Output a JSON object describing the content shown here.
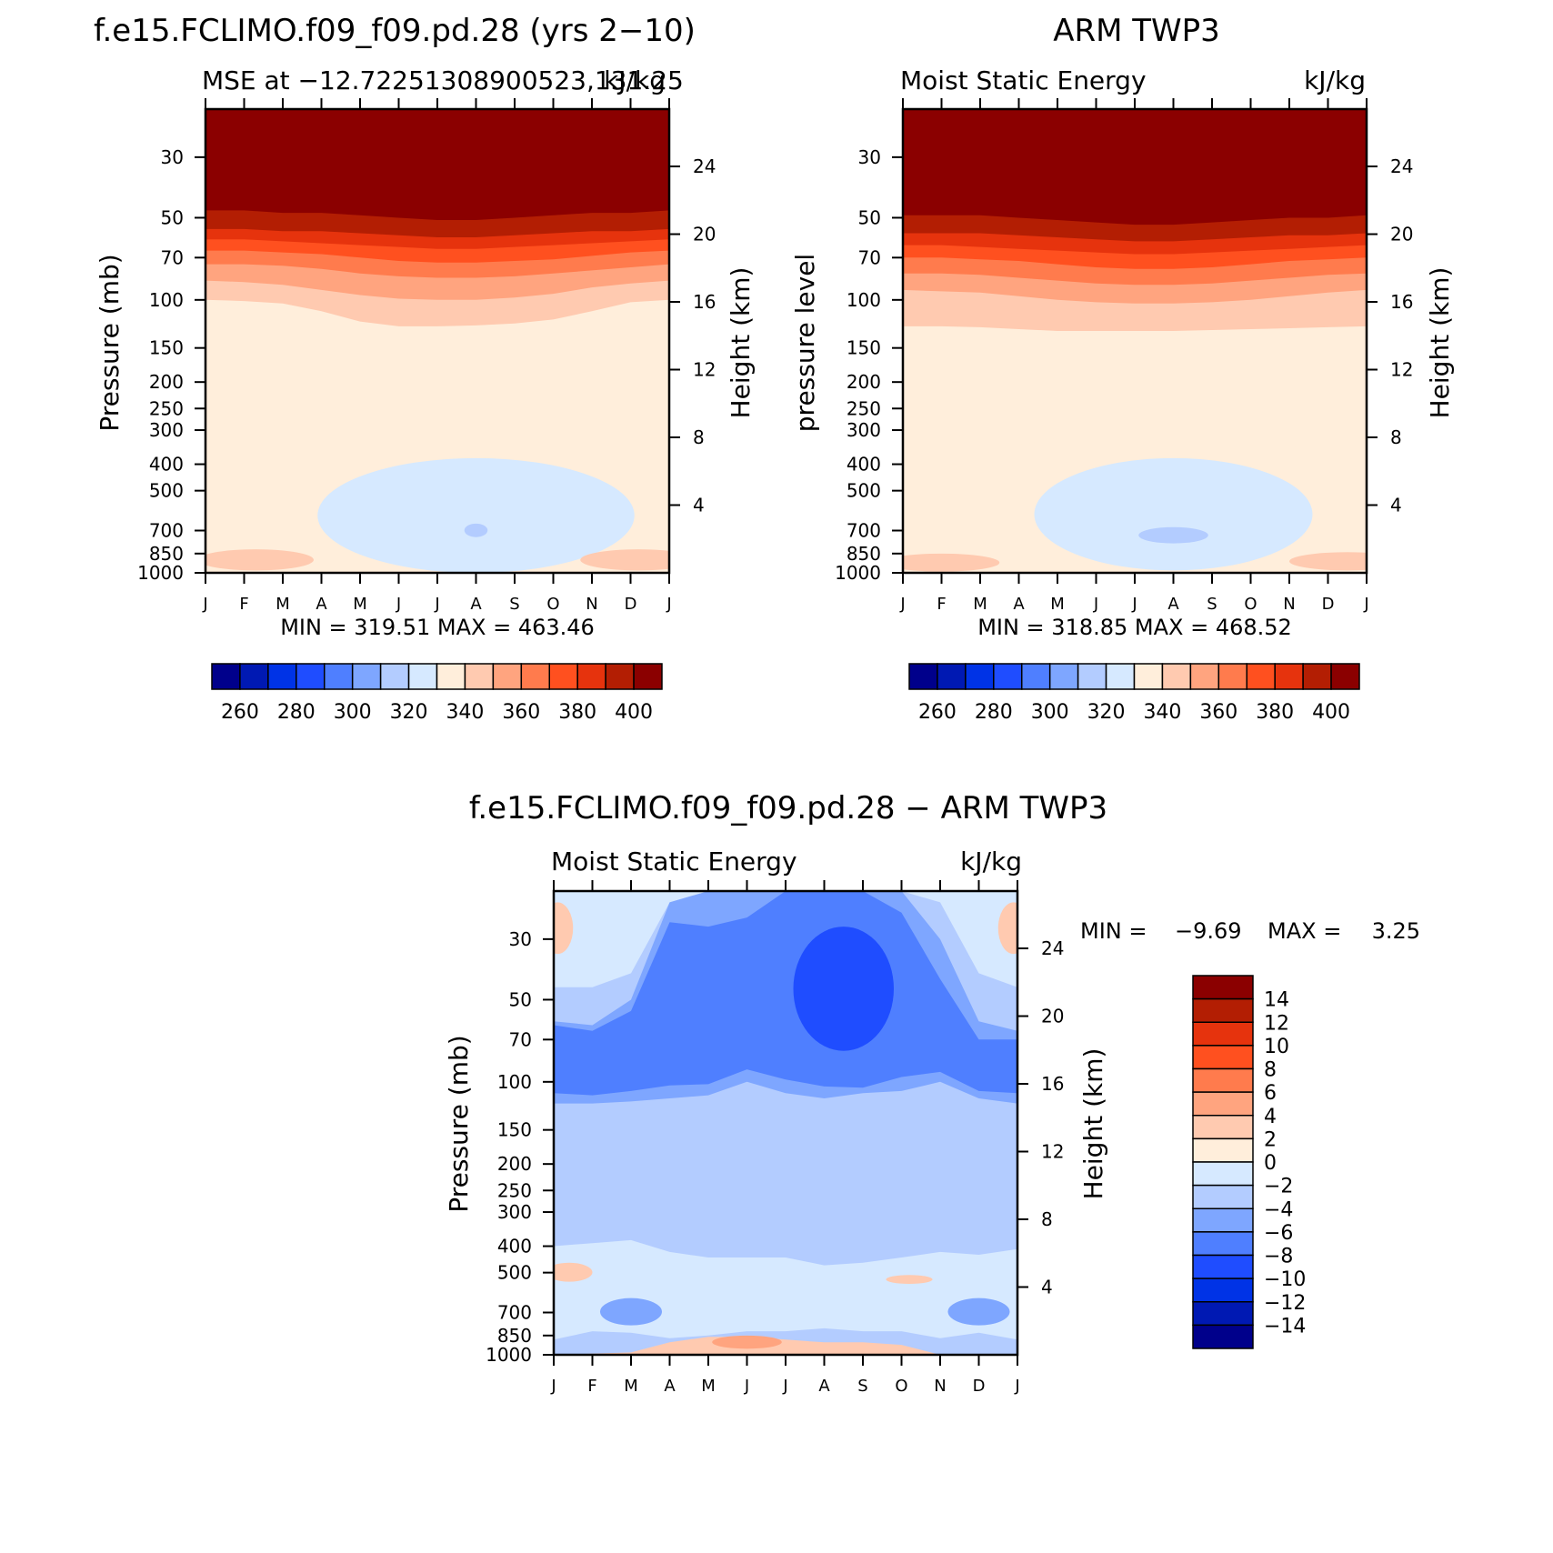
{
  "chart_data": [
    {
      "type": "heatmap",
      "id": "model",
      "title": "f.e15.FCLIMO.f09_f09.pd.28 (yrs 2−10)",
      "left_subtitle": "MSE at −12.72251308900523,131.25",
      "right_subtitle": "kJ/kg",
      "ylabel": "Pressure (mb)",
      "ylabel_right": "Height (km)",
      "xlabel": "",
      "months": [
        "J",
        "F",
        "M",
        "A",
        "M",
        "J",
        "J",
        "A",
        "S",
        "O",
        "N",
        "D",
        "J"
      ],
      "pressure_ticks": [
        30,
        50,
        70,
        100,
        150,
        200,
        250,
        300,
        400,
        500,
        700,
        850,
        1000
      ],
      "height_ticks": [
        4,
        8,
        12,
        16,
        20,
        24
      ],
      "ylim": [
        1000,
        20
      ],
      "stats": "MIN = 319.51 MAX = 463.46",
      "colorbar": {
        "orientation": "horizontal",
        "levels": [
          250,
          260,
          270,
          280,
          290,
          300,
          310,
          320,
          330,
          340,
          350,
          360,
          370,
          380,
          390,
          400
        ],
        "tick_labels": [
          "260",
          "280",
          "300",
          "320",
          "340",
          "360",
          "380",
          "400"
        ],
        "colors": [
          "#00008b",
          "#0019b3",
          "#0033e6",
          "#1f4dff",
          "#4f7fff",
          "#7ea6ff",
          "#b3ccff",
          "#d6e9ff",
          "#ffeedb",
          "#ffcab0",
          "#ffa47f",
          "#ff7b4d",
          "#ff501f",
          "#e6330d",
          "#b31e03",
          "#8b0000"
        ]
      },
      "fields": [
        {
          "level": 330,
          "months": [
            0,
            1,
            2,
            3,
            4,
            5,
            6,
            7,
            8,
            9,
            10,
            11,
            12
          ],
          "pressure": [
            280,
            285,
            290,
            260,
            230,
            215,
            210,
            210,
            220,
            240,
            270,
            290,
            285
          ]
        },
        {
          "level": 340,
          "months": [
            0,
            1,
            2,
            3,
            4,
            5,
            6,
            7,
            8,
            9,
            10,
            11,
            12
          ],
          "pressure": [
            100,
            101,
            103,
            110,
            120,
            125,
            125,
            124,
            122,
            118,
            110,
            102,
            100
          ]
        },
        {
          "level": 350,
          "months": [
            0,
            1,
            2,
            3,
            4,
            5,
            6,
            7,
            8,
            9,
            10,
            11,
            12
          ],
          "pressure": [
            85,
            86,
            88,
            92,
            96,
            99,
            100,
            100,
            98,
            95,
            90,
            87,
            85
          ]
        },
        {
          "level": 360,
          "months": [
            0,
            1,
            2,
            3,
            4,
            5,
            6,
            7,
            8,
            9,
            10,
            11,
            12
          ],
          "pressure": [
            74,
            74,
            75,
            77,
            80,
            82,
            83,
            83,
            82,
            80,
            78,
            76,
            74
          ]
        },
        {
          "level": 370,
          "months": [
            0,
            1,
            2,
            3,
            4,
            5,
            6,
            7,
            8,
            9,
            10,
            11,
            12
          ],
          "pressure": [
            66,
            66,
            67,
            68,
            70,
            72,
            73,
            73,
            72,
            71,
            69,
            67,
            66
          ]
        },
        {
          "level": 380,
          "months": [
            0,
            1,
            2,
            3,
            4,
            5,
            6,
            7,
            8,
            9,
            10,
            11,
            12
          ],
          "pressure": [
            60,
            60,
            61,
            62,
            63,
            64,
            65,
            65,
            64,
            63,
            62,
            61,
            60
          ]
        },
        {
          "level": 390,
          "months": [
            0,
            1,
            2,
            3,
            4,
            5,
            6,
            7,
            8,
            9,
            10,
            11,
            12
          ],
          "pressure": [
            55,
            55,
            56,
            56,
            57,
            58,
            59,
            59,
            58,
            57,
            56,
            56,
            55
          ]
        }
      ],
      "anomalies": [
        {
          "level": 320,
          "center": [
            7.0,
            700
          ],
          "extent": [
            4.1,
            320
          ]
        },
        {
          "level": 310,
          "center": [
            7.0,
            700
          ],
          "extent": [
            0.3,
            40
          ]
        },
        {
          "level": 340,
          "center": [
            1.3,
            900
          ],
          "extent": [
            1.5,
            80
          ]
        },
        {
          "level": 340,
          "center": [
            11.2,
            900
          ],
          "extent": [
            1.5,
            80
          ]
        }
      ]
    },
    {
      "type": "heatmap",
      "id": "obs",
      "title": "ARM TWP3",
      "left_subtitle": "Moist Static Energy",
      "right_subtitle": "kJ/kg",
      "ylabel": "pressure level",
      "ylabel_right": "Height (km)",
      "xlabel": "",
      "months": [
        "J",
        "F",
        "M",
        "A",
        "M",
        "J",
        "J",
        "A",
        "S",
        "O",
        "N",
        "D",
        "J"
      ],
      "pressure_ticks": [
        30,
        50,
        70,
        100,
        150,
        200,
        250,
        300,
        400,
        500,
        700,
        850,
        1000
      ],
      "height_ticks": [
        4,
        8,
        12,
        16,
        20,
        24
      ],
      "ylim": [
        1000,
        20
      ],
      "stats": "MIN = 318.85 MAX = 468.52",
      "colorbar": {
        "orientation": "horizontal",
        "levels": [
          250,
          260,
          270,
          280,
          290,
          300,
          310,
          320,
          330,
          340,
          350,
          360,
          370,
          380,
          390,
          400
        ],
        "tick_labels": [
          "260",
          "280",
          "300",
          "320",
          "340",
          "360",
          "380",
          "400"
        ],
        "colors": [
          "#00008b",
          "#0019b3",
          "#0033e6",
          "#1f4dff",
          "#4f7fff",
          "#7ea6ff",
          "#b3ccff",
          "#d6e9ff",
          "#ffeedb",
          "#ffcab0",
          "#ffa47f",
          "#ff7b4d",
          "#ff501f",
          "#e6330d",
          "#b31e03",
          "#8b0000"
        ]
      },
      "fields": [
        {
          "level": 330,
          "months": [
            0,
            1,
            2,
            3,
            4,
            5,
            6,
            7,
            8,
            9,
            10,
            11,
            12
          ],
          "pressure": [
            390,
            385,
            370,
            340,
            320,
            310,
            300,
            300,
            300,
            310,
            340,
            370,
            390
          ]
        },
        {
          "level": 340,
          "months": [
            0,
            1,
            2,
            3,
            4,
            5,
            6,
            7,
            8,
            9,
            10,
            11,
            12
          ],
          "pressure": [
            125,
            125,
            126,
            128,
            130,
            130,
            130,
            130,
            129,
            128,
            127,
            126,
            125
          ]
        },
        {
          "level": 350,
          "months": [
            0,
            1,
            2,
            3,
            4,
            5,
            6,
            7,
            8,
            9,
            10,
            11,
            12
          ],
          "pressure": [
            92,
            93,
            94,
            97,
            100,
            102,
            103,
            103,
            102,
            100,
            97,
            94,
            92
          ]
        },
        {
          "level": 360,
          "months": [
            0,
            1,
            2,
            3,
            4,
            5,
            6,
            7,
            8,
            9,
            10,
            11,
            12
          ],
          "pressure": [
            80,
            80,
            81,
            83,
            85,
            87,
            88,
            88,
            87,
            85,
            83,
            81,
            80
          ]
        },
        {
          "level": 370,
          "months": [
            0,
            1,
            2,
            3,
            4,
            5,
            6,
            7,
            8,
            9,
            10,
            11,
            12
          ],
          "pressure": [
            70,
            70,
            71,
            72,
            74,
            76,
            77,
            77,
            76,
            74,
            72,
            71,
            70
          ]
        },
        {
          "level": 380,
          "months": [
            0,
            1,
            2,
            3,
            4,
            5,
            6,
            7,
            8,
            9,
            10,
            11,
            12
          ],
          "pressure": [
            63,
            63,
            64,
            65,
            66,
            67,
            68,
            68,
            67,
            66,
            65,
            64,
            63
          ]
        },
        {
          "level": 390,
          "months": [
            0,
            1,
            2,
            3,
            4,
            5,
            6,
            7,
            8,
            9,
            10,
            11,
            12
          ],
          "pressure": [
            57,
            57,
            57,
            58,
            59,
            60,
            61,
            61,
            60,
            59,
            58,
            58,
            57
          ]
        }
      ],
      "anomalies": [
        {
          "level": 320,
          "center": [
            7.0,
            680
          ],
          "extent": [
            3.6,
            300
          ]
        },
        {
          "level": 310,
          "center": [
            7.0,
            730
          ],
          "extent": [
            0.9,
            50
          ]
        },
        {
          "level": 340,
          "center": [
            1.0,
            920
          ],
          "extent": [
            1.5,
            70
          ]
        },
        {
          "level": 340,
          "center": [
            11.5,
            910
          ],
          "extent": [
            1.5,
            70
          ]
        }
      ]
    },
    {
      "type": "heatmap",
      "id": "diff",
      "title": "f.e15.FCLIMO.f09_f09.pd.28 − ARM TWP3",
      "left_subtitle": "Moist Static Energy",
      "right_subtitle": "kJ/kg",
      "ylabel": "Pressure (mb)",
      "ylabel_right": "Height (km)",
      "xlabel": "",
      "months": [
        "J",
        "F",
        "M",
        "A",
        "M",
        "J",
        "J",
        "A",
        "S",
        "O",
        "N",
        "D",
        "J"
      ],
      "pressure_ticks": [
        30,
        50,
        70,
        100,
        150,
        200,
        250,
        300,
        400,
        500,
        700,
        850,
        1000
      ],
      "height_ticks": [
        4,
        8,
        12,
        16,
        20,
        24
      ],
      "ylim": [
        1000,
        20
      ],
      "stats_label": "MIN =",
      "stats_min": "−9.69",
      "stats_max_label": "MAX =",
      "stats_max": "3.25",
      "colorbar": {
        "orientation": "vertical",
        "levels": [
          -16,
          -14,
          -12,
          -10,
          -8,
          -6,
          -4,
          -2,
          0,
          2,
          4,
          6,
          8,
          10,
          12,
          14,
          16
        ],
        "tick_labels": [
          "14",
          "12",
          "10",
          "8",
          "6",
          "4",
          "2",
          "0",
          "−2",
          "−4",
          "−6",
          "−8",
          "−10",
          "−12",
          "−14"
        ],
        "colors": [
          "#00008b",
          "#0019b3",
          "#0033e6",
          "#1f4dff",
          "#4f7fff",
          "#7ea6ff",
          "#b3ccff",
          "#d6e9ff",
          "#ffeedb",
          "#ffcab0",
          "#ffa47f",
          "#ff7b4d",
          "#ff501f",
          "#e6330d",
          "#b31e03",
          "#8b0000"
        ]
      },
      "base_level": -4,
      "bands": [
        {
          "level": -2,
          "months": [
            0,
            1,
            2,
            3,
            4,
            5,
            6,
            7,
            8,
            9,
            10,
            11,
            12
          ],
          "pressure_top": [
            20,
            20,
            20,
            20,
            20,
            20,
            20,
            20,
            20,
            20,
            20,
            20,
            20
          ],
          "pressure_bottom": [
            45,
            45,
            40,
            22,
            20,
            20,
            20,
            20,
            20,
            20,
            22,
            40,
            45
          ]
        },
        {
          "level": -6,
          "months": [
            0,
            1,
            2,
            3,
            4,
            5,
            6,
            7,
            8,
            9,
            10,
            11,
            12
          ],
          "pressure_top": [
            60,
            62,
            50,
            22,
            20,
            20,
            20,
            20,
            20,
            20,
            30,
            60,
            65
          ],
          "pressure_bottom": [
            120,
            120,
            118,
            115,
            112,
            100,
            110,
            115,
            110,
            108,
            100,
            115,
            120
          ]
        },
        {
          "level": -8,
          "months": [
            0,
            1,
            2,
            3,
            4,
            5,
            6,
            7,
            8,
            9,
            10,
            11,
            12
          ],
          "pressure_top": [
            62,
            65,
            55,
            26,
            27,
            25,
            20,
            20,
            20,
            24,
            42,
            70,
            70
          ],
          "pressure_bottom": [
            110,
            112,
            108,
            103,
            102,
            90,
            98,
            104,
            105,
            96,
            92,
            108,
            110
          ]
        },
        {
          "level": -2,
          "months": [
            0,
            1,
            2,
            3,
            4,
            5,
            6,
            7,
            8,
            9,
            10,
            11,
            12
          ],
          "pressure_top": [
            400,
            390,
            380,
            420,
            440,
            440,
            440,
            470,
            460,
            440,
            420,
            430,
            410
          ],
          "pressure_bottom": [
            880,
            820,
            830,
            870,
            850,
            820,
            820,
            800,
            820,
            820,
            870,
            830,
            880
          ]
        },
        {
          "level": 2,
          "months": [
            0,
            1,
            2,
            3,
            4,
            5,
            6,
            7,
            8,
            9,
            10,
            11,
            12
          ],
          "pressure_top": [
            1000,
            990,
            980,
            900,
            860,
            860,
            880,
            900,
            900,
            920,
            1000,
            1000,
            1000
          ],
          "pressure_bottom": [
            1000,
            1000,
            1000,
            1000,
            1000,
            1000,
            1000,
            1000,
            1000,
            1000,
            1000,
            1000,
            1000
          ]
        }
      ],
      "patches": [
        {
          "level": -10,
          "center": [
            7.5,
            52
          ],
          "extent": [
            1.3,
            25
          ]
        },
        {
          "level": -6,
          "center": [
            2.0,
            700
          ],
          "extent": [
            0.8,
            80
          ]
        },
        {
          "level": -6,
          "center": [
            11.0,
            700
          ],
          "extent": [
            0.8,
            80
          ]
        },
        {
          "level": 2,
          "center": [
            0.4,
            500
          ],
          "extent": [
            0.6,
            40
          ]
        },
        {
          "level": 2,
          "center": [
            9.2,
            530
          ],
          "extent": [
            0.6,
            20
          ]
        },
        {
          "level": 4,
          "center": [
            5.0,
            900
          ],
          "extent": [
            0.9,
            50
          ]
        },
        {
          "level": 2,
          "center": [
            0.1,
            28
          ],
          "extent": [
            0.4,
            6
          ]
        },
        {
          "level": 2,
          "center": [
            11.9,
            28
          ],
          "extent": [
            0.4,
            6
          ]
        }
      ]
    }
  ]
}
